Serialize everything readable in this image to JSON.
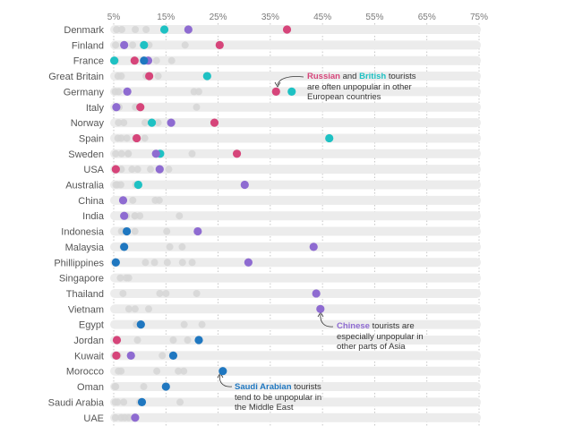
{
  "chart_data": {
    "type": "scatter",
    "title": "",
    "xlabel": "",
    "ylabel": "",
    "xlim": [
      5,
      75
    ],
    "x_ticks": [
      5,
      15,
      25,
      35,
      45,
      55,
      65,
      75
    ],
    "x_tick_labels": [
      "5%",
      "15%",
      "25%",
      "35%",
      "45%",
      "55%",
      "65%",
      "75%"
    ],
    "countries": [
      "Denmark",
      "Finland",
      "France",
      "Great Britain",
      "Germany",
      "Italy",
      "Norway",
      "Spain",
      "Sweden",
      "USA",
      "Australia",
      "China",
      "India",
      "Indonesia",
      "Malaysia",
      "Phillippines",
      "Singapore",
      "Thailand",
      "Vietnam",
      "Egypt",
      "Jordan",
      "Kuwait",
      "Morocco",
      "Oman",
      "Saudi Arabia",
      "UAE"
    ],
    "series": [
      {
        "name": "Russian",
        "color": "#d6457a",
        "values": [
          38.2,
          25.3,
          9.0,
          11.8,
          36.1,
          10.1,
          24.3,
          9.4,
          28.6,
          5.4,
          0,
          0,
          0,
          0,
          0,
          0,
          0,
          0,
          0,
          0,
          5.6,
          5.5,
          0,
          0,
          0,
          0
        ]
      },
      {
        "name": "British",
        "color": "#1ec1c3",
        "values": [
          14.7,
          10.8,
          5.1,
          22.9,
          39.1,
          0,
          12.3,
          46.3,
          13.9,
          0,
          9.7,
          0,
          0,
          0,
          0,
          0,
          0,
          0,
          0,
          0,
          0,
          0,
          0,
          0,
          0,
          0
        ]
      },
      {
        "name": "Chinese",
        "color": "#8e6bd1",
        "values": [
          19.3,
          7.0,
          11.6,
          0,
          7.6,
          5.5,
          16.0,
          0,
          13.1,
          13.8,
          30.1,
          6.8,
          7.0,
          21.1,
          43.3,
          30.8,
          0,
          43.8,
          44.6,
          0,
          0,
          8.3,
          0,
          0,
          0,
          9.1
        ]
      },
      {
        "name": "Saudi Arabian",
        "color": "#1f77c0",
        "values": [
          0,
          0,
          10.8,
          0,
          0,
          0,
          0,
          0,
          0,
          0,
          0,
          0,
          0,
          7.5,
          7.0,
          5.4,
          0,
          0,
          0,
          10.2,
          21.3,
          16.4,
          25.9,
          15.0,
          10.4,
          0
        ]
      }
    ]
  },
  "annotations": {
    "europe": {
      "lead_a": "Russian",
      "mid": " and ",
      "lead_b": "British",
      "rest": " tourists",
      "line2": "are often unpopular in other",
      "line3": "European countries"
    },
    "asia": {
      "lead": "Chinese",
      "rest": " tourists are",
      "line2": "especially unpopular in",
      "line3": "other parts of Asia"
    },
    "mideast": {
      "lead": "Saudi Arabian",
      "rest": " tourists",
      "line2": "tend to be unpopular in",
      "line3": "the Middle East"
    }
  }
}
